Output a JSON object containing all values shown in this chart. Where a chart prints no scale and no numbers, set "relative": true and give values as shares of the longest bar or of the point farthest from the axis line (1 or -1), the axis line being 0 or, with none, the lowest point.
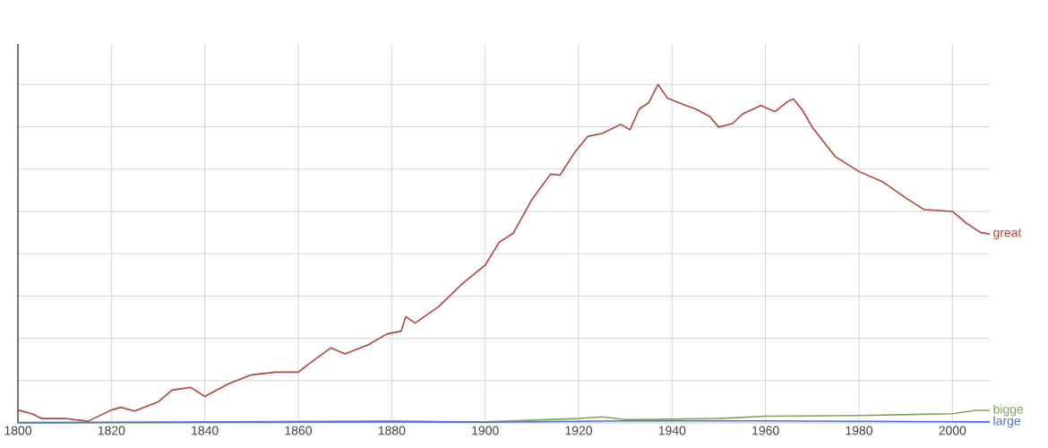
{
  "chart_data": {
    "type": "line",
    "relative": true,
    "xlim": [
      1800,
      2008
    ],
    "xticks": [
      1800,
      1820,
      1840,
      1860,
      1880,
      1900,
      1920,
      1940,
      1960,
      1980,
      2000
    ],
    "tick_labels": "x",
    "grid": true,
    "legend": false,
    "marker": "none",
    "line_style": "solid",
    "series": [
      {
        "name": "great",
        "color": "#b5443a",
        "x": [
          1800,
          1803,
          1805,
          1810,
          1815,
          1820,
          1822,
          1825,
          1830,
          1833,
          1837,
          1840,
          1845,
          1850,
          1855,
          1860,
          1862,
          1867,
          1870,
          1875,
          1879,
          1882,
          1883,
          1885,
          1890,
          1895,
          1900,
          1903,
          1906,
          1910,
          1914,
          1916,
          1919,
          1922,
          1925,
          1929,
          1931,
          1933,
          1935,
          1937,
          1939,
          1942,
          1945,
          1948,
          1950,
          1953,
          1955,
          1959,
          1962,
          1965,
          1966,
          1968,
          1970,
          1975,
          1980,
          1985,
          1990,
          1994,
          2000,
          2003,
          2006,
          2008
        ],
        "values": [
          0.038,
          0.027,
          0.013,
          0.013,
          0.005,
          0.038,
          0.046,
          0.035,
          0.062,
          0.097,
          0.105,
          0.078,
          0.115,
          0.142,
          0.15,
          0.15,
          0.172,
          0.222,
          0.204,
          0.231,
          0.263,
          0.271,
          0.314,
          0.295,
          0.343,
          0.41,
          0.466,
          0.534,
          0.56,
          0.66,
          0.735,
          0.732,
          0.796,
          0.847,
          0.855,
          0.882,
          0.866,
          0.928,
          0.946,
          1.0,
          0.96,
          0.943,
          0.928,
          0.906,
          0.874,
          0.885,
          0.912,
          0.938,
          0.92,
          0.952,
          0.957,
          0.922,
          0.874,
          0.786,
          0.743,
          0.713,
          0.665,
          0.63,
          0.625,
          0.59,
          0.563,
          0.558
        ]
      },
      {
        "name": "bigge",
        "color": "#7fa35c",
        "x": [
          1800,
          1900,
          1920,
          1925,
          1930,
          1940,
          1950,
          1960,
          1980,
          2000,
          2005,
          2008
        ],
        "values": [
          0.0,
          0.003,
          0.013,
          0.018,
          0.01,
          0.011,
          0.013,
          0.02,
          0.022,
          0.027,
          0.037,
          0.037
        ]
      },
      {
        "name": "large",
        "color": "#4d6fd6",
        "x": [
          1800,
          1880,
          1900,
          1930,
          1960,
          2008
        ],
        "values": [
          0.001,
          0.005,
          0.002,
          0.006,
          0.006,
          0.003
        ]
      }
    ]
  }
}
